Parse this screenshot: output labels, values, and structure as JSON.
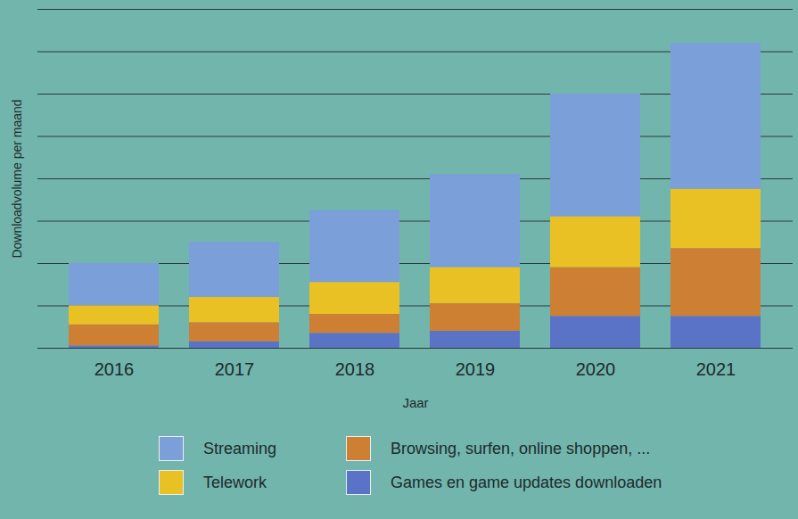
{
  "chart_data": {
    "type": "bar",
    "stacked": true,
    "xlabel": "Jaar",
    "ylabel": "Downloadvolume per maand",
    "categories": [
      "2016",
      "2017",
      "2018",
      "2019",
      "2020",
      "2021"
    ],
    "series": [
      {
        "name": "Streaming",
        "color": "#7b9fd8",
        "values": [
          1.0,
          1.3,
          1.7,
          2.2,
          2.9,
          3.45
        ]
      },
      {
        "name": "Telework",
        "color": "#e9c124",
        "values": [
          0.45,
          0.6,
          0.75,
          0.85,
          1.2,
          1.4
        ]
      },
      {
        "name": "Browsing, surfen, online shoppen, ...",
        "color": "#cd7f33",
        "values": [
          0.5,
          0.45,
          0.45,
          0.65,
          1.15,
          1.6
        ]
      },
      {
        "name": "Games en game updates downloaden",
        "color": "#5b73c6",
        "values": [
          0.05,
          0.15,
          0.35,
          0.4,
          0.75,
          0.75
        ]
      }
    ],
    "ylim": [
      0,
      8
    ],
    "yticks": [
      0,
      1,
      2,
      3,
      4,
      5,
      6,
      7,
      8
    ],
    "grid": true,
    "tick_labels": "x",
    "legend": "bottom"
  }
}
